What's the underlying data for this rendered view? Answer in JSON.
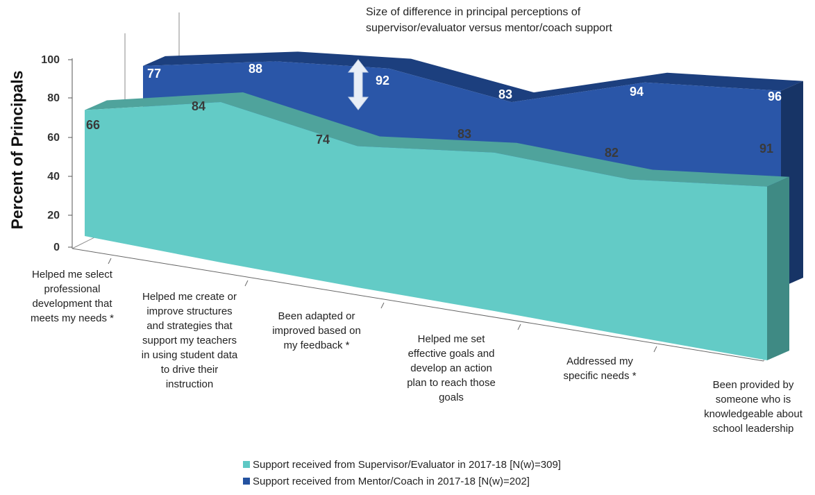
{
  "chart_data": {
    "type": "area",
    "annotation": [
      "Size of difference in principal perceptions of",
      "supervisor/evaluator versus mentor/coach support"
    ],
    "ylabel": "Percent of Principals",
    "ylim": [
      0,
      100
    ],
    "yticks": [
      0,
      20,
      40,
      60,
      80,
      100
    ],
    "categories": [
      [
        "Helped me select",
        "professional",
        "development that",
        "meets my needs *"
      ],
      [
        "Helped me create or",
        "improve structures",
        "and strategies that",
        "support my teachers",
        "in using student data",
        "to drive their",
        "instruction"
      ],
      [
        "Been adapted or",
        "improved based on",
        "my feedback *"
      ],
      [
        "Helped me set",
        "effective goals and",
        "develop an action",
        "plan to reach those",
        "goals"
      ],
      [
        "Addressed my",
        "specific needs *"
      ],
      [
        "Been provided by",
        "someone who is",
        "knowledgeable about",
        "school leadership"
      ]
    ],
    "series": [
      {
        "name": "Support received from Supervisor/Evaluator in 2017-18 [N(w)=309]",
        "values": [
          66,
          84,
          74,
          83,
          82,
          91
        ],
        "color": "#5ec8c4"
      },
      {
        "name": "Support received from Mentor/Coach in 2017-18 [N(w)=202]",
        "values": [
          77,
          88,
          92,
          83,
          94,
          96
        ],
        "color": "#2452a0"
      }
    ],
    "legend_position": "bottom"
  }
}
